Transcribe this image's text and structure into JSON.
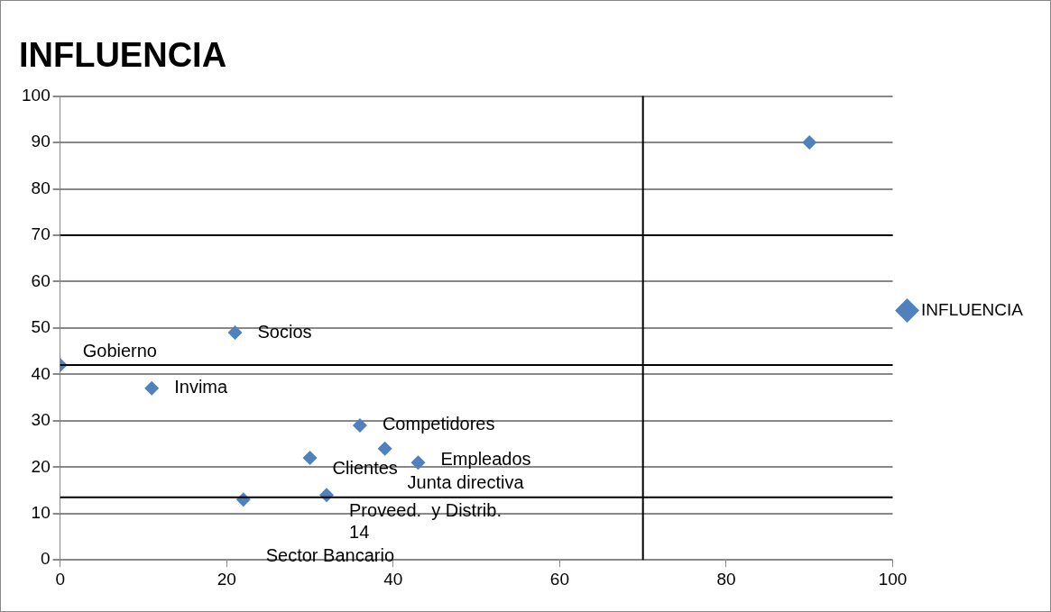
{
  "chart_data": {
    "type": "scatter",
    "title": "INFLUENCIA",
    "series": [
      {
        "name": "INFLUENCIA",
        "color": "#4f81bd",
        "x": [
          0,
          11,
          21,
          36,
          39,
          43,
          30,
          32,
          22,
          90
        ],
        "values": [
          42,
          37,
          49,
          29,
          24,
          21,
          22,
          14,
          13,
          90
        ]
      }
    ],
    "annotations": [
      {
        "text": "Gobierno",
        "x": 0,
        "y": 42
      },
      {
        "text": "Invima",
        "x": 11,
        "y": 37
      },
      {
        "text": "Socios",
        "x": 21,
        "y": 49
      },
      {
        "text": "Competidores",
        "x": 36,
        "y": 29
      },
      {
        "text": "Junta directiva",
        "x": 39,
        "y": 24
      },
      {
        "text": "Empleados",
        "x": 43,
        "y": 21
      },
      {
        "text": "Clientes",
        "x": 30,
        "y": 22
      },
      {
        "text": "Proveed.  y Distrib.",
        "x": 32,
        "y": 14
      },
      {
        "text": "14",
        "x": 32,
        "y": 14
      },
      {
        "text": "Sector Bancario",
        "x": 22,
        "y": 13
      }
    ],
    "ref_lines": [
      {
        "axis": "y",
        "value": 70,
        "color": "#000000"
      },
      {
        "axis": "y",
        "value": 42,
        "color": "#000000"
      },
      {
        "axis": "y",
        "value": 13.5,
        "color": "#000000"
      },
      {
        "axis": "x",
        "value": 70,
        "color": "#000000"
      }
    ],
    "xlim": [
      0,
      100
    ],
    "xticks": [
      0,
      20,
      40,
      60,
      80,
      100
    ],
    "ylim": [
      0,
      100
    ],
    "yticks": [
      0,
      10,
      20,
      30,
      40,
      50,
      60,
      70,
      80,
      90,
      100
    ],
    "grid": "y",
    "legend": "right",
    "marker": "diamond"
  }
}
